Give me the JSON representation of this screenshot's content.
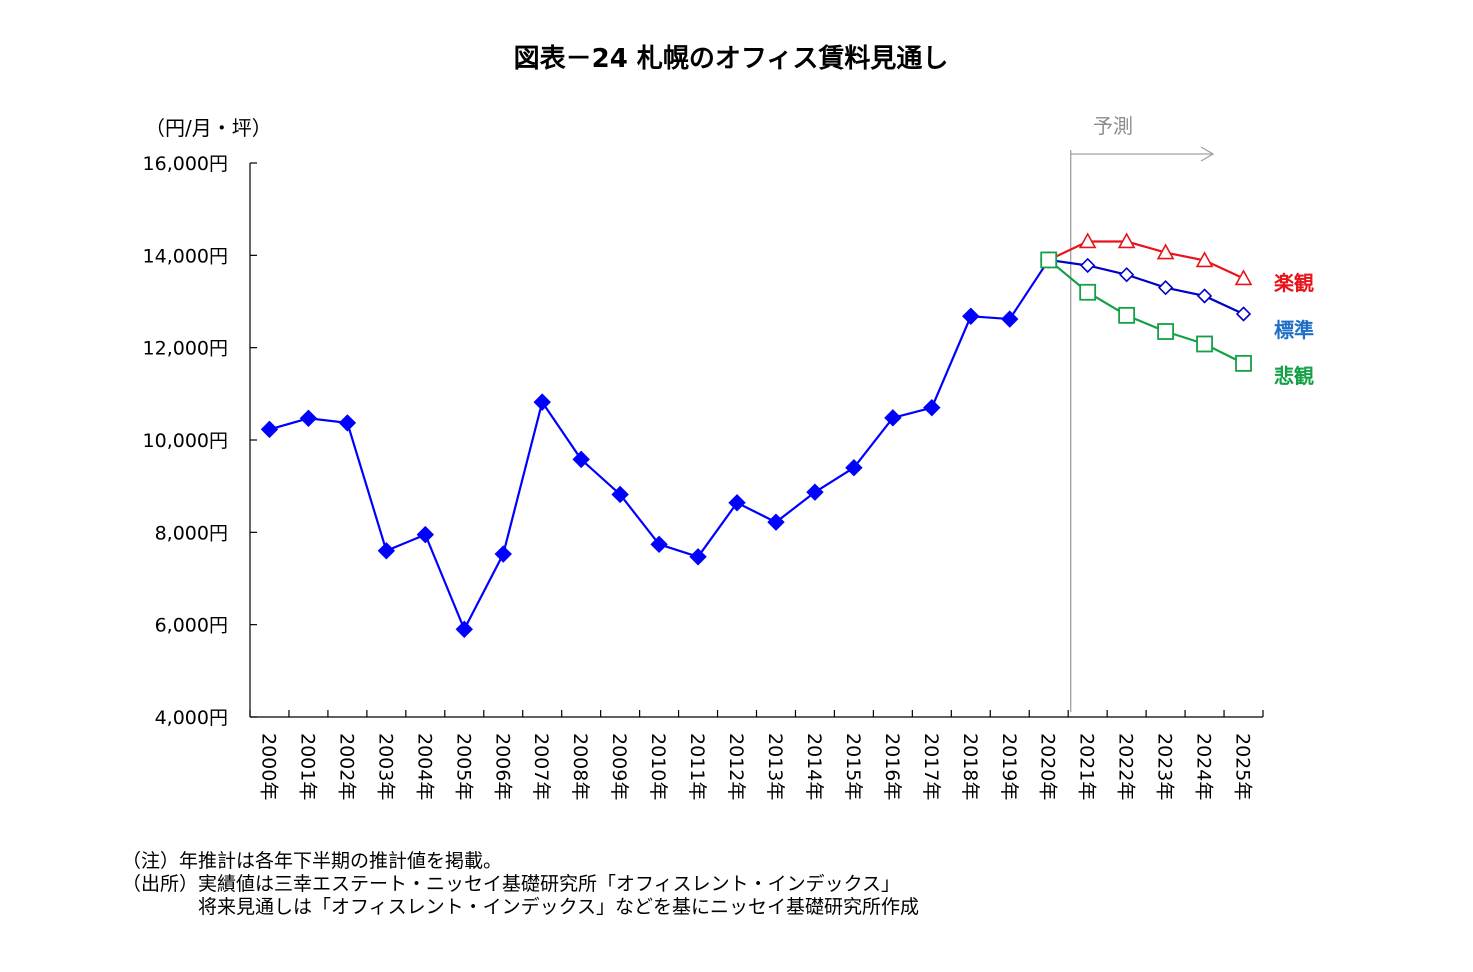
{
  "chart_data": {
    "type": "line",
    "title": "図表－24 札幌のオフィス賃料見通し",
    "y_unit": "（円/月・坪）",
    "ylim": [
      4000,
      16000
    ],
    "y_ticks": [
      "4,000円",
      "6,000円",
      "8,000円",
      "10,000円",
      "12,000円",
      "14,000円",
      "16,000円"
    ],
    "y_tick_values": [
      4000,
      6000,
      8000,
      10000,
      12000,
      14000,
      16000
    ],
    "categories": [
      "2000年",
      "2001年",
      "2002年",
      "2003年",
      "2004年",
      "2005年",
      "2006年",
      "2007年",
      "2008年",
      "2009年",
      "2010年",
      "2011年",
      "2012年",
      "2013年",
      "2014年",
      "2015年",
      "2016年",
      "2017年",
      "2018年",
      "2019年",
      "2020年",
      "2021年",
      "2022年",
      "2023年",
      "2024年",
      "2025年"
    ],
    "forecast_label": "予測",
    "forecast_start": "2020年",
    "grid": false,
    "series": [
      {
        "key": "actual",
        "color": "#0000ff",
        "marker": "diamond-filled",
        "x": [
          "2000年",
          "2001年",
          "2002年",
          "2003年",
          "2004年",
          "2005年",
          "2006年",
          "2007年",
          "2008年",
          "2009年",
          "2010年",
          "2011年",
          "2012年",
          "2013年",
          "2014年",
          "2015年",
          "2016年",
          "2017年",
          "2018年",
          "2019年",
          "2020年"
        ],
        "values": [
          10230,
          10470,
          10370,
          7600,
          7950,
          5900,
          7530,
          10820,
          9580,
          8820,
          7740,
          7470,
          8640,
          8220,
          8870,
          9400,
          10480,
          10700,
          12680,
          12620,
          13900
        ]
      },
      {
        "key": "optimistic",
        "name": "楽観",
        "color": "#e8141b",
        "marker": "triangle-open",
        "x": [
          "2020年",
          "2021年",
          "2022年",
          "2023年",
          "2024年",
          "2025年"
        ],
        "values": [
          13900,
          14300,
          14300,
          14060,
          13890,
          13500
        ]
      },
      {
        "key": "standard",
        "name": "標準",
        "color": "#0000c8",
        "label_color": "#1e6fc8",
        "marker": "diamond-open",
        "x": [
          "2020年",
          "2021年",
          "2022年",
          "2023年",
          "2024年",
          "2025年"
        ],
        "values": [
          13900,
          13780,
          13580,
          13300,
          13120,
          12730
        ]
      },
      {
        "key": "pessimistic",
        "name": "悲観",
        "color": "#14a046",
        "marker": "square-open",
        "x": [
          "2020年",
          "2021年",
          "2022年",
          "2023年",
          "2024年",
          "2025年"
        ],
        "values": [
          13900,
          13200,
          12700,
          12350,
          12080,
          11660
        ]
      }
    ]
  },
  "notes": [
    "（注）年推計は各年下半期の推計値を掲載。",
    "（出所）実績値は三幸エステート・ニッセイ基礎研究所「オフィスレント・インデックス」",
    "　　　　将来見通しは「オフィスレント・インデックス」などを基にニッセイ基礎研究所作成"
  ]
}
